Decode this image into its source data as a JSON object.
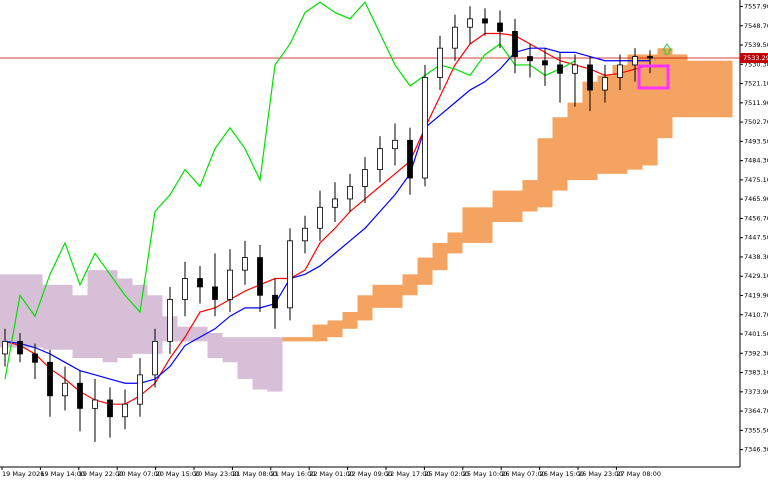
{
  "chart_data": {
    "type": "candlestick",
    "ylim": [
      7338,
      7561
    ],
    "yticks": [
      {
        "value": 7346.3,
        "label": "7346.30"
      },
      {
        "value": 7355.5,
        "label": "7355.50"
      },
      {
        "value": 7364.7,
        "label": "7364.70"
      },
      {
        "value": 7373.9,
        "label": "7373.90"
      },
      {
        "value": 7383.1,
        "label": "7383.10"
      },
      {
        "value": 7392.3,
        "label": "7392.30"
      },
      {
        "value": 7401.5,
        "label": "7401.50"
      },
      {
        "value": 7410.7,
        "label": "7410.70"
      },
      {
        "value": 7419.9,
        "label": "7419.90"
      },
      {
        "value": 7429.1,
        "label": "7429.10"
      },
      {
        "value": 7438.3,
        "label": "7438.30"
      },
      {
        "value": 7447.5,
        "label": "7447.50"
      },
      {
        "value": 7456.7,
        "label": "7456.70"
      },
      {
        "value": 7465.9,
        "label": "7465.90"
      },
      {
        "value": 7475.1,
        "label": "7475.10"
      },
      {
        "value": 7484.3,
        "label": "7484.30"
      },
      {
        "value": 7493.5,
        "label": "7493.50"
      },
      {
        "value": 7502.7,
        "label": "7502.70"
      },
      {
        "value": 7511.9,
        "label": "7511.90"
      },
      {
        "value": 7521.1,
        "label": "7521.10"
      },
      {
        "value": 7530.3,
        "label": "7530.30"
      },
      {
        "value": 7539.5,
        "label": "7539.50"
      },
      {
        "value": 7548.7,
        "label": "7548.70"
      },
      {
        "value": 7557.9,
        "label": "7557.90"
      }
    ],
    "x_labels": [
      "19 May 2026",
      "19 May 14:00",
      "19 May 22:00",
      "20 May 07:00",
      "20 May 15:00",
      "20 May 23:00",
      "21 May 08:00",
      "21 May 16:00",
      "22 May 01:00",
      "22 May 09:00",
      "22 May 17:00",
      "25 May 02:00",
      "25 May 10:00",
      "26 May 07:00",
      "26 May 15:00",
      "26 May 23:00",
      "27 May 08:00"
    ],
    "candles": {
      "open": [
        7392,
        7398,
        7392,
        7388,
        7372,
        7378,
        7366,
        7370,
        7362,
        7368,
        7382,
        7398,
        7418,
        7428,
        7424,
        7418,
        7432,
        7438,
        7420,
        7414,
        7446,
        7452,
        7462,
        7466,
        7472,
        7480,
        7490,
        7494,
        7476,
        7524,
        7538,
        7548,
        7552,
        7550,
        7546,
        7534,
        7532,
        7530,
        7526,
        7530,
        7518,
        7524,
        7530,
        7534
      ],
      "high": [
        7404,
        7402,
        7397,
        7394,
        7386,
        7384,
        7380,
        7376,
        7375,
        7390,
        7404,
        7424,
        7436,
        7434,
        7440,
        7442,
        7446,
        7444,
        7428,
        7452,
        7458,
        7470,
        7474,
        7478,
        7486,
        7496,
        7502,
        7500,
        7530,
        7544,
        7554,
        7558,
        7557,
        7556,
        7552,
        7540,
        7538,
        7536,
        7535,
        7534,
        7530,
        7535,
        7538,
        7537
      ],
      "low": [
        7386,
        7388,
        7380,
        7362,
        7365,
        7355,
        7350,
        7352,
        7356,
        7362,
        7376,
        7392,
        7410,
        7416,
        7410,
        7412,
        7425,
        7412,
        7404,
        7408,
        7440,
        7446,
        7455,
        7460,
        7464,
        7474,
        7482,
        7468,
        7472,
        7518,
        7532,
        7540,
        7544,
        7538,
        7526,
        7524,
        7520,
        7512,
        7510,
        7508,
        7512,
        7518,
        7522,
        7526
      ],
      "close": [
        7398,
        7392,
        7388,
        7372,
        7378,
        7366,
        7370,
        7362,
        7368,
        7382,
        7398,
        7418,
        7428,
        7424,
        7418,
        7432,
        7438,
        7420,
        7414,
        7446,
        7452,
        7462,
        7466,
        7472,
        7480,
        7490,
        7494,
        7476,
        7524,
        7538,
        7548,
        7552,
        7550,
        7546,
        7534,
        7532,
        7530,
        7526,
        7530,
        7518,
        7524,
        7530,
        7534,
        7533.29
      ]
    },
    "series": [
      {
        "name": "tenkan",
        "color": "#ff0000",
        "values": [
          7398,
          7396,
          7392,
          7385,
          7380,
          7374,
          7370,
          7368,
          7368,
          7372,
          7378,
          7390,
          7400,
          7412,
          7414,
          7418,
          7422,
          7425,
          7428,
          7428,
          7432,
          7445,
          7452,
          7460,
          7466,
          7472,
          7478,
          7484,
          7500,
          7515,
          7530,
          7540,
          7545,
          7545,
          7544,
          7540,
          7536,
          7532,
          7530,
          7528,
          7525,
          7526,
          7528,
          7530
        ]
      },
      {
        "name": "kijun",
        "color": "#0000ff",
        "values": [
          7398,
          7397,
          7395,
          7392,
          7388,
          7384,
          7382,
          7380,
          7378,
          7378,
          7380,
          7386,
          7396,
          7400,
          7404,
          7410,
          7414,
          7414,
          7416,
          7428,
          7430,
          7434,
          7440,
          7446,
          7452,
          7460,
          7468,
          7478,
          7500,
          7506,
          7512,
          7518,
          7522,
          7528,
          7536,
          7538,
          7538,
          7536,
          7536,
          7534,
          7532,
          7532,
          7532,
          7532
        ]
      },
      {
        "name": "chikou",
        "color": "#00e000",
        "values": [
          7380,
          7420,
          7410,
          7430,
          7445,
          7425,
          7440,
          7430,
          7420,
          7412,
          7460,
          7468,
          7480,
          7472,
          7490,
          7500,
          7490,
          7475,
          7530,
          7540,
          7555,
          7560,
          7555,
          7552,
          7560,
          7545,
          7530,
          7520,
          7525,
          7530,
          7528,
          7525,
          7535,
          7540,
          7530,
          7530,
          7525,
          7528,
          7532,
          null,
          null,
          null,
          null,
          null
        ]
      }
    ],
    "cloud": {
      "bull_color": "#f4a460",
      "bear_color": "#d8bfd8",
      "span_a": [
        7395,
        7395,
        7395,
        7394,
        7394,
        7390,
        7390,
        7388,
        7390,
        7392,
        7392,
        7398,
        7398,
        7398,
        7390,
        7388,
        7380,
        7375,
        7374,
        7400,
        7400,
        7406,
        7408,
        7412,
        7420,
        7425,
        7425,
        7430,
        7438,
        7445,
        7450,
        7462,
        7462,
        7470,
        7470,
        7475,
        7495,
        7505,
        7512,
        7522,
        7525,
        7530,
        7535,
        7535,
        7538,
        7535,
        7532,
        7532,
        7532
      ],
      "span_b": [
        7430,
        7430,
        7430,
        7425,
        7425,
        7420,
        7432,
        7432,
        7428,
        7425,
        7420,
        7410,
        7405,
        7405,
        7402,
        7400,
        7400,
        7400,
        7400,
        7398,
        7398,
        7398,
        7400,
        7404,
        7408,
        7414,
        7414,
        7420,
        7425,
        7432,
        7440,
        7445,
        7445,
        7455,
        7455,
        7460,
        7462,
        7470,
        7475,
        7475,
        7478,
        7478,
        7480,
        7482,
        7495,
        7505,
        7505,
        7505,
        7505
      ]
    },
    "price_line": 7533.29
  }
}
